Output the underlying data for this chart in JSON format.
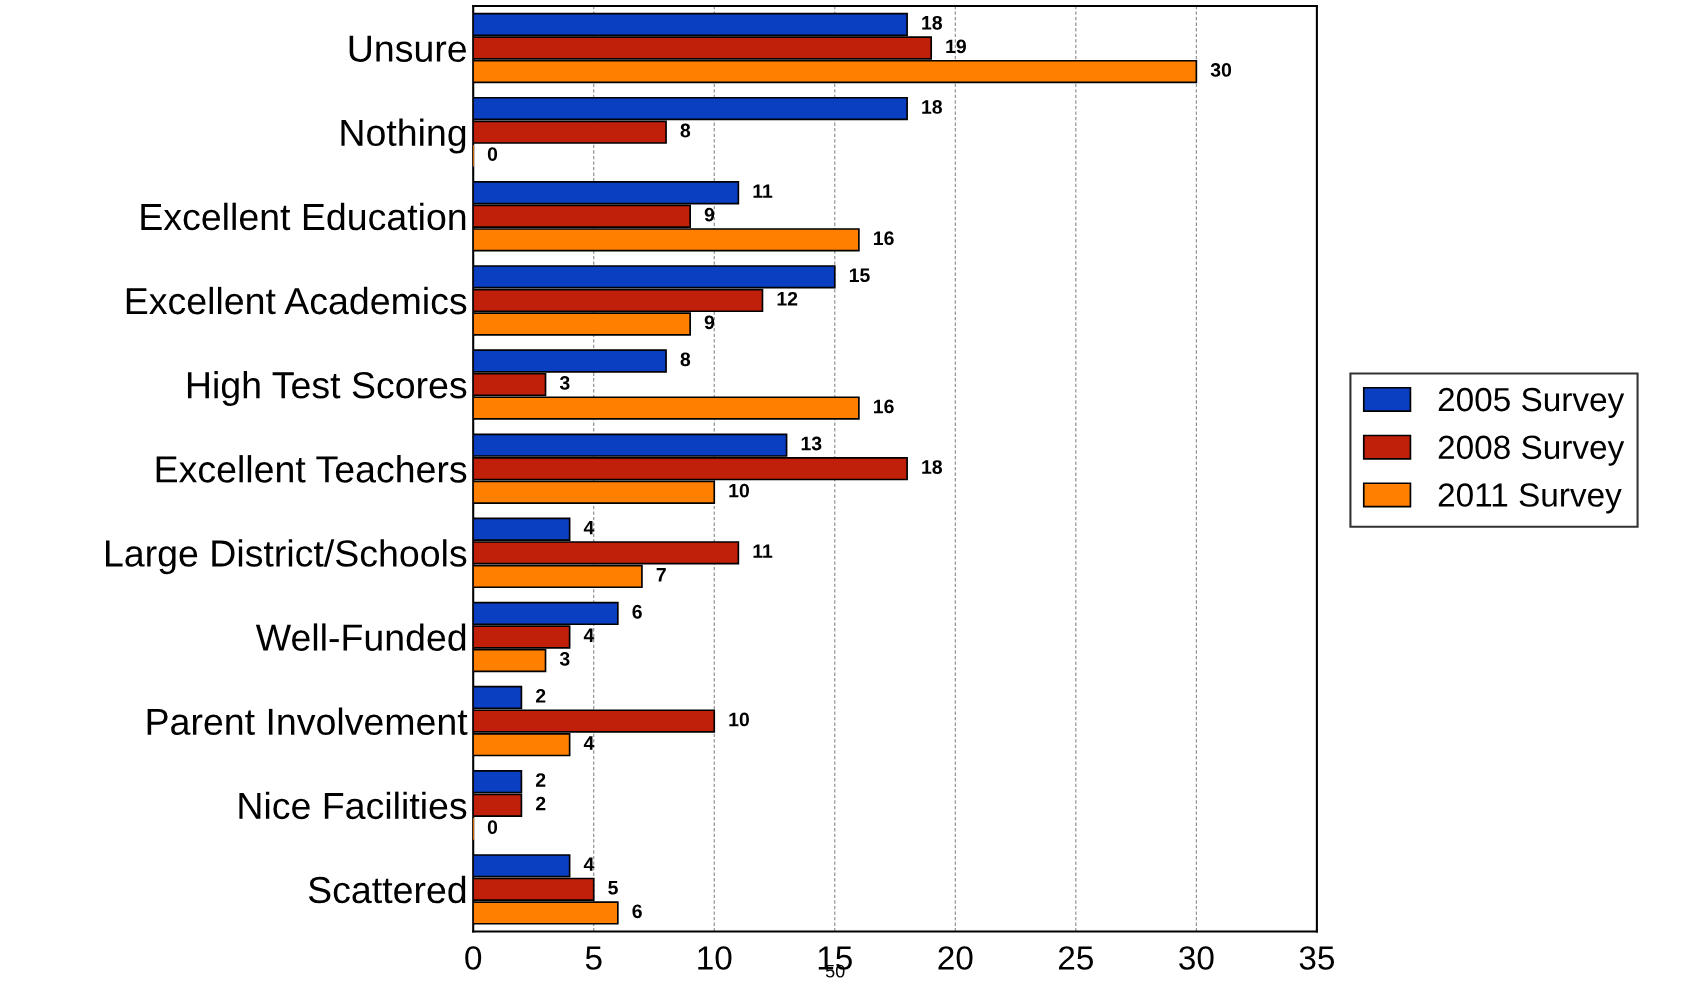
{
  "chart_data": {
    "type": "bar",
    "orientation": "horizontal",
    "categories": [
      "Unsure",
      "Nothing",
      "Excellent Education",
      "Excellent Academics",
      "High Test Scores",
      "Excellent Teachers",
      "Large District/Schools",
      "Well-Funded",
      "Parent Involvement",
      "Nice Facilities",
      "Scattered"
    ],
    "series": [
      {
        "name": "2005 Survey",
        "color": "#0a3fc2",
        "values": [
          18,
          18,
          11,
          15,
          8,
          13,
          4,
          6,
          2,
          2,
          4
        ]
      },
      {
        "name": "2008 Survey",
        "color": "#c0200a",
        "values": [
          19,
          8,
          9,
          12,
          3,
          18,
          11,
          4,
          10,
          2,
          5
        ]
      },
      {
        "name": "2011 Survey",
        "color": "#ff8000",
        "values": [
          30,
          0,
          16,
          9,
          16,
          10,
          7,
          3,
          4,
          0,
          6
        ]
      }
    ],
    "xlim": [
      0,
      35
    ],
    "xticks": [
      0,
      5,
      10,
      15,
      20,
      25,
      30,
      35
    ],
    "grid": "x",
    "legend": "right",
    "data_labels": true,
    "annotations": [
      "50"
    ]
  }
}
